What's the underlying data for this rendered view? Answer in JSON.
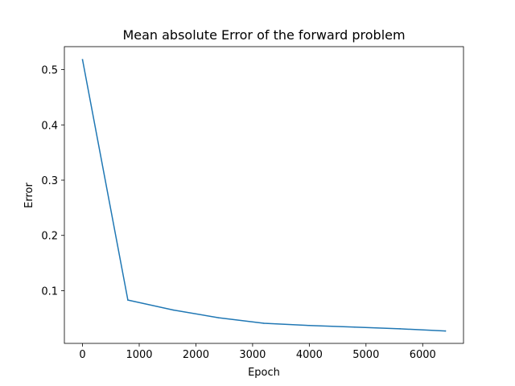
{
  "chart_data": {
    "type": "line",
    "title": "Mean absolute Error of the forward problem",
    "xlabel": "Epoch",
    "ylabel": "Error",
    "xlim": [
      -320,
      6720
    ],
    "ylim": [
      0.0046,
      0.5416
    ],
    "x_ticks": [
      0,
      1000,
      2000,
      3000,
      4000,
      5000,
      6000
    ],
    "y_ticks": [
      0.1,
      0.2,
      0.3,
      0.4,
      0.5
    ],
    "grid": false,
    "legend": "none",
    "series": [
      {
        "color": "#1f77b4",
        "x": [
          0,
          800,
          1600,
          2400,
          3200,
          4000,
          4800,
          5600,
          6400
        ],
        "y": [
          0.518,
          0.083,
          0.065,
          0.051,
          0.041,
          0.037,
          0.034,
          0.031,
          0.027
        ]
      }
    ]
  }
}
